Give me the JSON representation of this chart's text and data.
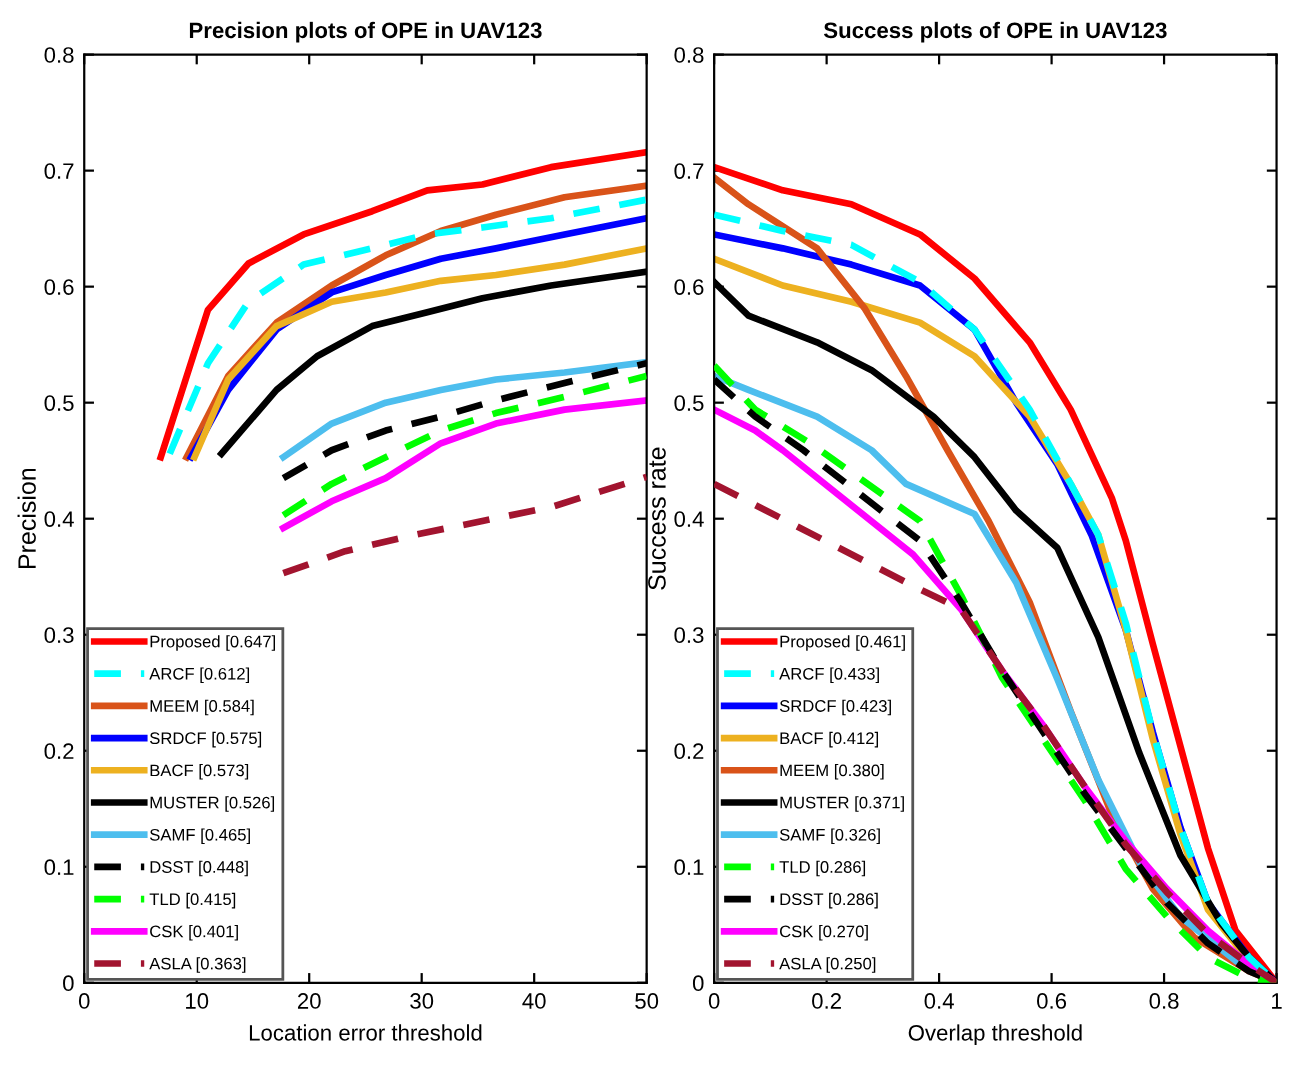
{
  "chart_data": [
    {
      "type": "line",
      "title": "Precision plots of OPE in UAV123",
      "xlabel": "Location error threshold",
      "ylabel": "Precision",
      "xlim": [
        0,
        50
      ],
      "ylim": [
        0,
        0.8
      ],
      "xticks": [
        0,
        10,
        20,
        30,
        40,
        50
      ],
      "yticks": [
        0,
        0.1,
        0.2,
        0.3,
        0.4,
        0.5,
        0.6,
        0.7,
        0.8
      ],
      "grid": false,
      "legend": "bottom left",
      "marker": "none",
      "series": [
        {
          "name": "Proposed [0.647]",
          "color": "#ff0000",
          "line_style": "solid",
          "x": [
            6.8,
            11,
            14.6,
            19.5,
            25.6,
            30.5,
            35.4,
            41.5,
            50
          ],
          "values": [
            0.453,
            0.58,
            0.62,
            0.645,
            0.665,
            0.683,
            0.688,
            0.703,
            0.716
          ]
        },
        {
          "name": "ARCF [0.612]",
          "color": "#00ffff",
          "line_style": "dashed",
          "x": [
            7.6,
            11,
            14.6,
            19.5,
            25.6,
            30.5,
            35.4,
            41.5,
            50
          ],
          "values": [
            0.456,
            0.534,
            0.587,
            0.619,
            0.633,
            0.645,
            0.651,
            0.659,
            0.675
          ]
        },
        {
          "name": "MEEM [0.584]",
          "color": "#d95319",
          "line_style": "solid",
          "x": [
            9.1,
            12.8,
            17.1,
            22,
            26.8,
            31.7,
            36.6,
            42.7,
            50
          ],
          "values": [
            0.453,
            0.523,
            0.569,
            0.601,
            0.627,
            0.648,
            0.662,
            0.677,
            0.687
          ]
        },
        {
          "name": "SRDCF [0.575]",
          "color": "#0000ff",
          "line_style": "solid",
          "x": [
            9.5,
            12.8,
            17.1,
            22,
            26.8,
            31.7,
            36.6,
            42.7,
            50
          ],
          "values": [
            0.453,
            0.511,
            0.563,
            0.595,
            0.61,
            0.624,
            0.633,
            0.645,
            0.659
          ]
        },
        {
          "name": "BACF [0.573]",
          "color": "#edb120",
          "line_style": "solid",
          "x": [
            9.8,
            12.8,
            17.1,
            22,
            26.8,
            31.7,
            36.6,
            42.7,
            50
          ],
          "values": [
            0.453,
            0.52,
            0.566,
            0.587,
            0.595,
            0.605,
            0.61,
            0.619,
            0.633
          ]
        },
        {
          "name": "MUSTER [0.526]",
          "color": "#000000",
          "line_style": "solid",
          "x": [
            12.2,
            17.1,
            20.7,
            25.6,
            30.5,
            35.4,
            41.5,
            50
          ],
          "values": [
            0.456,
            0.511,
            0.54,
            0.566,
            0.578,
            0.59,
            0.601,
            0.613
          ]
        },
        {
          "name": "SAMF [0.465]",
          "color": "#4dbeee",
          "line_style": "solid",
          "x": [
            17.7,
            22,
            26.8,
            31.7,
            36.6,
            42.7,
            50
          ],
          "values": [
            0.453,
            0.482,
            0.5,
            0.511,
            0.52,
            0.526,
            0.535
          ]
        },
        {
          "name": "DSST [0.448]",
          "color": "#000000",
          "line_style": "dashed",
          "x": [
            17.7,
            22,
            26.8,
            31.7,
            36.6,
            42.7,
            50
          ],
          "values": [
            0.435,
            0.459,
            0.476,
            0.488,
            0.502,
            0.517,
            0.534
          ]
        },
        {
          "name": "TLD [0.415]",
          "color": "#00ff00",
          "line_style": "dashed",
          "x": [
            17.7,
            22,
            26.8,
            31.7,
            36.6,
            42.7,
            50
          ],
          "values": [
            0.403,
            0.43,
            0.453,
            0.476,
            0.491,
            0.505,
            0.523
          ]
        },
        {
          "name": "CSK [0.401]",
          "color": "#ff00ff",
          "line_style": "solid",
          "x": [
            17.7,
            22,
            26.8,
            31.7,
            36.6,
            42.7,
            50
          ],
          "values": [
            0.392,
            0.415,
            0.435,
            0.465,
            0.482,
            0.494,
            0.502
          ]
        },
        {
          "name": "ASLA [0.363]",
          "color": "#a2142f",
          "line_style": "dashed",
          "x": [
            17.7,
            23.2,
            29.3,
            35.4,
            41.5,
            50
          ],
          "values": [
            0.353,
            0.372,
            0.386,
            0.398,
            0.41,
            0.436
          ]
        }
      ]
    },
    {
      "type": "line",
      "title": "Success plots of OPE in UAV123",
      "xlabel": "Overlap threshold",
      "ylabel": "Success rate",
      "xlim": [
        0,
        1
      ],
      "ylim": [
        0,
        0.8
      ],
      "xticks": [
        0,
        0.2,
        0.4,
        0.6,
        0.8,
        1
      ],
      "yticks": [
        0,
        0.1,
        0.2,
        0.3,
        0.4,
        0.5,
        0.6,
        0.7,
        0.8
      ],
      "grid": false,
      "legend": "bottom left",
      "marker": "none",
      "series": [
        {
          "name": "Proposed [0.461]",
          "color": "#ff0000",
          "line_style": "solid",
          "x": [
            0,
            0.122,
            0.244,
            0.366,
            0.463,
            0.561,
            0.634,
            0.707,
            0.732,
            0.78,
            0.829,
            0.878,
            0.927,
            1
          ],
          "values": [
            0.703,
            0.683,
            0.671,
            0.645,
            0.607,
            0.552,
            0.494,
            0.418,
            0.381,
            0.292,
            0.204,
            0.116,
            0.045,
            0
          ]
        },
        {
          "name": "ARCF [0.433]",
          "color": "#00ffff",
          "line_style": "dashed",
          "x": [
            0,
            0.122,
            0.244,
            0.366,
            0.463,
            0.561,
            0.634,
            0.683,
            0.732,
            0.78,
            0.829,
            0.878,
            0.951,
            1
          ],
          "values": [
            0.662,
            0.648,
            0.636,
            0.604,
            0.563,
            0.494,
            0.43,
            0.386,
            0.31,
            0.216,
            0.134,
            0.069,
            0.022,
            0
          ]
        },
        {
          "name": "SRDCF [0.423]",
          "color": "#0000ff",
          "line_style": "solid",
          "x": [
            0,
            0.122,
            0.244,
            0.366,
            0.463,
            0.537,
            0.61,
            0.671,
            0.732,
            0.78,
            0.829,
            0.878,
            0.951,
            1
          ],
          "values": [
            0.645,
            0.633,
            0.619,
            0.601,
            0.563,
            0.5,
            0.447,
            0.386,
            0.304,
            0.216,
            0.134,
            0.069,
            0.022,
            0
          ]
        },
        {
          "name": "BACF [0.412]",
          "color": "#edb120",
          "line_style": "solid",
          "x": [
            0,
            0.122,
            0.244,
            0.366,
            0.463,
            0.561,
            0.634,
            0.683,
            0.732,
            0.78,
            0.829,
            0.878,
            0.951,
            1
          ],
          "values": [
            0.624,
            0.601,
            0.587,
            0.569,
            0.54,
            0.488,
            0.43,
            0.386,
            0.304,
            0.21,
            0.128,
            0.063,
            0.019,
            0
          ]
        },
        {
          "name": "MEEM [0.380]",
          "color": "#d95319",
          "line_style": "solid",
          "x": [
            0,
            0.061,
            0.183,
            0.268,
            0.341,
            0.415,
            0.488,
            0.561,
            0.634,
            0.707,
            0.78,
            0.854,
            0.951,
            1
          ],
          "values": [
            0.694,
            0.671,
            0.633,
            0.581,
            0.523,
            0.459,
            0.398,
            0.328,
            0.234,
            0.145,
            0.081,
            0.039,
            0.01,
            0
          ]
        },
        {
          "name": "MUSTER [0.371]",
          "color": "#000000",
          "line_style": "solid",
          "x": [
            0,
            0.061,
            0.183,
            0.28,
            0.39,
            0.463,
            0.537,
            0.61,
            0.683,
            0.756,
            0.829,
            0.902,
            0.951,
            1
          ],
          "values": [
            0.604,
            0.575,
            0.552,
            0.528,
            0.488,
            0.453,
            0.407,
            0.375,
            0.298,
            0.198,
            0.11,
            0.051,
            0.022,
            0
          ]
        },
        {
          "name": "SAMF [0.326]",
          "color": "#4dbeee",
          "line_style": "solid",
          "x": [
            0,
            0.061,
            0.183,
            0.28,
            0.341,
            0.463,
            0.537,
            0.61,
            0.683,
            0.756,
            0.829,
            0.927,
            1
          ],
          "values": [
            0.523,
            0.511,
            0.488,
            0.459,
            0.43,
            0.404,
            0.345,
            0.262,
            0.175,
            0.104,
            0.057,
            0.019,
            0
          ]
        },
        {
          "name": "TLD [0.286]",
          "color": "#00ff00",
          "line_style": "dashed",
          "x": [
            0,
            0.073,
            0.171,
            0.366,
            0.439,
            0.512,
            0.585,
            0.659,
            0.732,
            0.805,
            0.878,
            0.951,
            1
          ],
          "values": [
            0.532,
            0.494,
            0.465,
            0.398,
            0.334,
            0.263,
            0.21,
            0.157,
            0.098,
            0.057,
            0.022,
            0.004,
            0
          ]
        },
        {
          "name": "DSST [0.286]",
          "color": "#000000",
          "line_style": "dashed",
          "x": [
            0,
            0.073,
            0.159,
            0.366,
            0.439,
            0.512,
            0.585,
            0.659,
            0.732,
            0.805,
            0.878,
            0.951,
            1
          ],
          "values": [
            0.52,
            0.488,
            0.459,
            0.381,
            0.328,
            0.269,
            0.216,
            0.163,
            0.116,
            0.069,
            0.034,
            0.01,
            0
          ]
        },
        {
          "name": "CSK [0.270]",
          "color": "#ff00ff",
          "line_style": "solid",
          "x": [
            0,
            0.073,
            0.122,
            0.354,
            0.439,
            0.512,
            0.585,
            0.659,
            0.732,
            0.805,
            0.878,
            0.951,
            1
          ],
          "values": [
            0.494,
            0.476,
            0.459,
            0.369,
            0.322,
            0.269,
            0.222,
            0.169,
            0.122,
            0.081,
            0.045,
            0.016,
            0
          ]
        },
        {
          "name": "ASLA [0.250]",
          "color": "#a2142f",
          "line_style": "dashed",
          "x": [
            0,
            0.354,
            0.439,
            0.512,
            0.585,
            0.659,
            0.732,
            0.805,
            0.878,
            0.951,
            1
          ],
          "values": [
            0.43,
            0.342,
            0.322,
            0.269,
            0.222,
            0.169,
            0.119,
            0.078,
            0.042,
            0.016,
            0
          ]
        }
      ]
    }
  ]
}
